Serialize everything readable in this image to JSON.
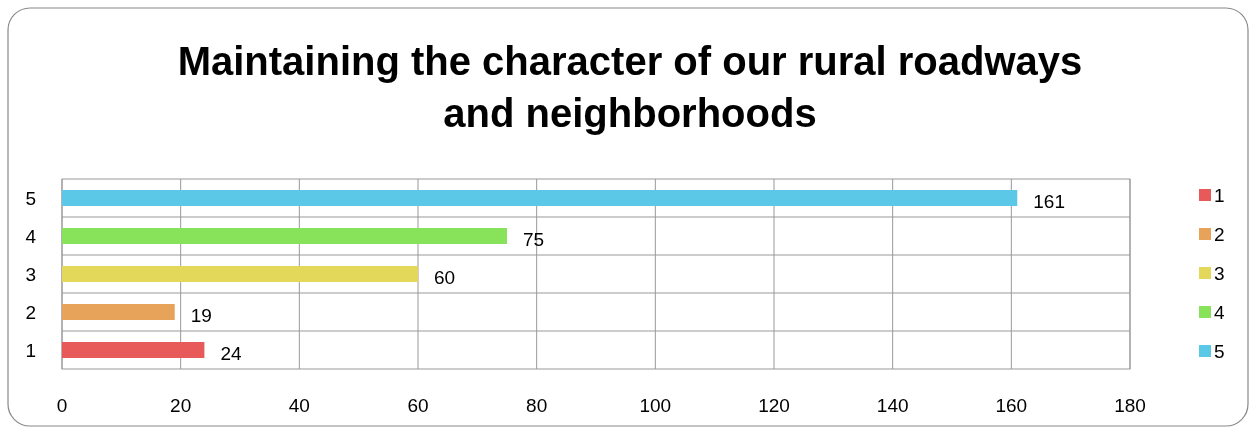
{
  "chart_data": {
    "type": "bar",
    "orientation": "horizontal",
    "stacked": true,
    "title": "Maintaining the character of our rural roadways and neighborhoods",
    "categories": [
      "5",
      "4",
      "3",
      "2",
      "1"
    ],
    "series": [
      {
        "name": "1",
        "color": "#e85a5a",
        "values": [
          null,
          null,
          null,
          null,
          24
        ]
      },
      {
        "name": "2",
        "color": "#e8a35a",
        "values": [
          null,
          null,
          null,
          19,
          null
        ]
      },
      {
        "name": "3",
        "color": "#e3d85a",
        "values": [
          null,
          null,
          60,
          null,
          null
        ]
      },
      {
        "name": "4",
        "color": "#88e25a",
        "values": [
          null,
          75,
          null,
          null,
          null
        ]
      },
      {
        "name": "5",
        "color": "#5bc8e8",
        "values": [
          161,
          null,
          null,
          null,
          null
        ]
      }
    ],
    "xlim": [
      0,
      180
    ],
    "xticks": [
      0,
      20,
      40,
      60,
      80,
      100,
      120,
      140,
      160,
      180
    ],
    "grid": true,
    "legend": "right",
    "data_labels": true
  }
}
